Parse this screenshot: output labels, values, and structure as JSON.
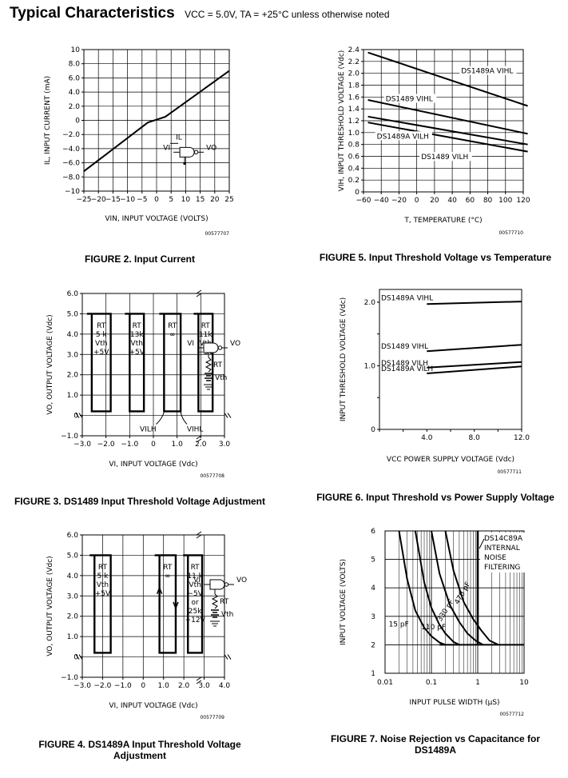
{
  "header": {
    "title": "Typical Characteristics",
    "conditions": "VCC = 5.0V, TA = +25°C unless otherwise noted"
  },
  "chart_data": [
    {
      "id": "fig2",
      "type": "line",
      "caption": "FIGURE 2. Input Current",
      "code": "00577707",
      "xlabel": "VIN, INPUT VOLTAGE (VOLTS)",
      "ylabel": "IL, INPUT CURRENT (mA)",
      "xlim": [
        -25,
        25
      ],
      "ylim": [
        -10,
        10
      ],
      "xticks": [
        -25,
        -20,
        -15,
        -10,
        -5,
        0,
        5,
        10,
        15,
        20,
        25
      ],
      "xtick_labels": [
        "−25",
        "−20",
        "−15",
        "−10",
        "−5",
        "0",
        "5",
        "10",
        "15",
        "20",
        "25"
      ],
      "yticks": [
        -10,
        -8,
        -6,
        -4,
        -2,
        0,
        2,
        4,
        6,
        8,
        10
      ],
      "ytick_labels": [
        "−10",
        "−8.0",
        "−6.0",
        "−4.0",
        "−2.0",
        "0",
        "2.0",
        "4.0",
        "6.0",
        "8.0",
        "10"
      ],
      "series": [
        {
          "name": "IL",
          "x": [
            -25,
            -3,
            3,
            25
          ],
          "y": [
            -7.2,
            -0.3,
            0.5,
            7.0
          ]
        }
      ],
      "annotations": [
        "IL",
        "VI",
        "VO"
      ]
    },
    {
      "id": "fig5",
      "type": "line",
      "caption": "FIGURE 5. Input Threshold Voltage vs Temperature",
      "code": "00577710",
      "xlabel": "T, TEMPERATURE (°C)",
      "ylabel": "VIH, INPUT THRESHOLD VOLTAGE (Vdc)",
      "xlim": [
        -60,
        120
      ],
      "ylim": [
        0,
        2.4
      ],
      "xticks": [
        -60,
        -40,
        -20,
        0,
        20,
        40,
        60,
        80,
        100,
        120
      ],
      "xtick_labels": [
        "−60",
        "−40",
        "−20",
        "0",
        "20",
        "40",
        "60",
        "80",
        "100",
        "120"
      ],
      "yticks": [
        0,
        0.2,
        0.4,
        0.6,
        0.8,
        1.0,
        1.2,
        1.4,
        1.6,
        1.8,
        2.0,
        2.2,
        2.4
      ],
      "ytick_labels": [
        "0",
        "0.2",
        "0.4",
        "0.6",
        "0.8",
        "1.0",
        "1.2",
        "1.4",
        "1.6",
        "1.8",
        "2.0",
        "2.2",
        "2.4"
      ],
      "series": [
        {
          "name": "DS1489A VIHL",
          "x": [
            -55,
            125
          ],
          "y": [
            2.35,
            1.45
          ]
        },
        {
          "name": "DS1489 VIHL",
          "x": [
            -55,
            125
          ],
          "y": [
            1.55,
            0.98
          ]
        },
        {
          "name": "DS1489A VILH",
          "x": [
            -55,
            125
          ],
          "y": [
            1.27,
            0.8
          ]
        },
        {
          "name": "DS1489 VILH",
          "x": [
            -55,
            125
          ],
          "y": [
            1.17,
            0.68
          ]
        }
      ],
      "annotations": [
        "DS1489A VIHL",
        "DS1489 VIHL",
        "DS1489A VILH",
        "DS1489 VILH"
      ]
    },
    {
      "id": "fig3",
      "type": "line",
      "caption": "FIGURE 3. DS1489 Input Threshold Voltage Adjustment",
      "code": "00577708",
      "xlabel": "VI, INPUT VOLTAGE (Vdc)",
      "ylabel": "VO, OUTPUT VOLTAGE (Vdc)",
      "xlim": [
        -3,
        3
      ],
      "ylim": [
        -1,
        6
      ],
      "xticks": [
        -3,
        -2,
        -1,
        0,
        1,
        2,
        3
      ],
      "xtick_labels": [
        "−3.0",
        "−2.0",
        "−1.0",
        "0",
        "1.0",
        "2.0",
        "3.0"
      ],
      "yticks": [
        -1,
        0,
        1,
        2,
        3,
        4,
        5,
        6
      ],
      "ytick_labels": [
        "−1.0",
        "0",
        "1.0",
        "2.0",
        "3.0",
        "4.0",
        "5.0",
        "6.0"
      ],
      "series": [
        {
          "name": "RT 5k Vth +5V",
          "vilh": -2.6,
          "vihl": -1.8
        },
        {
          "name": "RT 13k Vth +5V",
          "vilh": -1.0,
          "vihl": -0.4
        },
        {
          "name": "RT ∞",
          "vilh": 0.45,
          "vihl": 1.15
        },
        {
          "name": "RT 11k Vth −5V",
          "vilh": 1.9,
          "vihl": 2.5
        }
      ],
      "annotations": [
        [
          "RT",
          "5 k",
          "Vth",
          "+5V"
        ],
        [
          "RT",
          "13k",
          "Vth",
          "+5V"
        ],
        [
          "RT",
          "∞"
        ],
        [
          "RT",
          "11k",
          "Vth",
          "−5V"
        ],
        [
          "VILH",
          "VIHL",
          "VI",
          "VO",
          "RT",
          "Vth"
        ]
      ]
    },
    {
      "id": "fig6",
      "type": "line",
      "caption": "FIGURE 6. Input Threshold vs Power Supply Voltage",
      "code": "00577711",
      "xlabel": "VCC POWER SUPPLY VOLTAGE (Vdc)",
      "ylabel": "INPUT THRESHOLD VOLTAGE (Vdc)",
      "xlim": [
        0,
        12
      ],
      "ylim": [
        0,
        2.2
      ],
      "xticks": [
        0,
        4,
        8,
        12
      ],
      "xtick_labels": [
        "",
        "4.0",
        "8.0",
        "12.0"
      ],
      "yticks": [
        0,
        1,
        2
      ],
      "ytick_labels": [
        "0",
        "1.0",
        "2.0"
      ],
      "series": [
        {
          "name": "DS1489A VIHL",
          "x": [
            4,
            12
          ],
          "y": [
            1.97,
            2.01
          ]
        },
        {
          "name": "DS1489 VIHL",
          "x": [
            4,
            12
          ],
          "y": [
            1.23,
            1.33
          ]
        },
        {
          "name": "DS1489 VILH",
          "x": [
            4,
            12
          ],
          "y": [
            0.97,
            1.06
          ]
        },
        {
          "name": "DS1489A VILH",
          "x": [
            4,
            12
          ],
          "y": [
            0.88,
            0.99
          ]
        }
      ]
    },
    {
      "id": "fig4",
      "type": "line",
      "caption": "FIGURE 4. DS1489A Input Threshold Voltage Adjustment",
      "code": "00577709",
      "xlabel": "VI, INPUT VOLTAGE (Vdc)",
      "ylabel": "VO, OUTPUT VOLTAGE (Vdc)",
      "xlim": [
        -3,
        4
      ],
      "ylim": [
        -1,
        6
      ],
      "xticks": [
        -3,
        -2,
        -1,
        0,
        1,
        2,
        3,
        4
      ],
      "xtick_labels": [
        "−3.0",
        "−2.0",
        "−1.0",
        "0",
        "1.0",
        "2.0",
        "3.0",
        "4.0"
      ],
      "yticks": [
        -1,
        0,
        1,
        2,
        3,
        4,
        5,
        6
      ],
      "ytick_labels": [
        "−1.0",
        "0",
        "1.0",
        "2.0",
        "3.0",
        "4.0",
        "5.0",
        "6.0"
      ],
      "series": [
        {
          "name": "RT 5k Vth +5V",
          "vilh": -2.4,
          "vihl": -1.6
        },
        {
          "name": "RT ∞",
          "vilh": 0.8,
          "vihl": 1.6
        },
        {
          "name": "RT 11k Vth −5V or 25k −12V",
          "vilh": 2.2,
          "vihl": 2.9
        }
      ],
      "annotations": [
        [
          "RT",
          "5 k",
          "Vth",
          "+5V"
        ],
        [
          "RT",
          "∞"
        ],
        [
          "RT",
          "11 k",
          "Vth",
          "−5V",
          "or",
          "25k",
          "−12V"
        ],
        [
          "VI",
          "VO",
          "RT",
          "Vth"
        ]
      ]
    },
    {
      "id": "fig7",
      "type": "line",
      "caption": "FIGURE 7. Noise Rejection vs Capacitance for DS1489A",
      "code": "00577712",
      "xlabel": "INPUT PULSE WIDTH (µS)",
      "ylabel": "INPUT VOLTAGE (VOLTS)",
      "xscale": "log",
      "xlim": [
        0.01,
        10
      ],
      "ylim": [
        1,
        6
      ],
      "xticks": [
        0.01,
        0.1,
        1,
        10
      ],
      "xtick_labels": [
        "0.01",
        "0.1",
        "1",
        "10"
      ],
      "yticks": [
        1,
        2,
        3,
        4,
        5,
        6
      ],
      "ytick_labels": [
        "1",
        "2",
        "3",
        "4",
        "5",
        "6"
      ],
      "series": [
        {
          "name": "15 pF",
          "x": [
            0.02,
            0.03,
            0.045,
            0.07,
            0.1,
            0.15,
            0.2
          ],
          "y": [
            6,
            4.3,
            3.2,
            2.6,
            2.3,
            2.08,
            2.0
          ]
        },
        {
          "name": "110 pF",
          "x": [
            0.045,
            0.07,
            0.1,
            0.15,
            0.2,
            0.3,
            0.4
          ],
          "y": [
            6,
            4.2,
            3.3,
            2.7,
            2.4,
            2.1,
            2.0
          ]
        },
        {
          "name": "330 pF",
          "x": [
            0.1,
            0.15,
            0.25,
            0.4,
            0.6,
            0.9,
            1.3
          ],
          "y": [
            6,
            4.5,
            3.4,
            2.8,
            2.4,
            2.15,
            2.0
          ]
        },
        {
          "name": "470 pF",
          "x": [
            0.2,
            0.3,
            0.5,
            0.8,
            1.2,
            1.8,
            2.8
          ],
          "y": [
            6,
            4.6,
            3.5,
            2.9,
            2.5,
            2.15,
            2.0
          ]
        },
        {
          "name": "DS14C89A INTERNAL NOISE FILTERING",
          "x": [
            1,
            1
          ],
          "y": [
            2,
            6
          ]
        }
      ],
      "annotations": [
        "DS14C89A",
        "INTERNAL",
        "NOISE",
        "FILTERING",
        "15 pF",
        "110 pF",
        "330 pF",
        "470 pF"
      ]
    }
  ]
}
